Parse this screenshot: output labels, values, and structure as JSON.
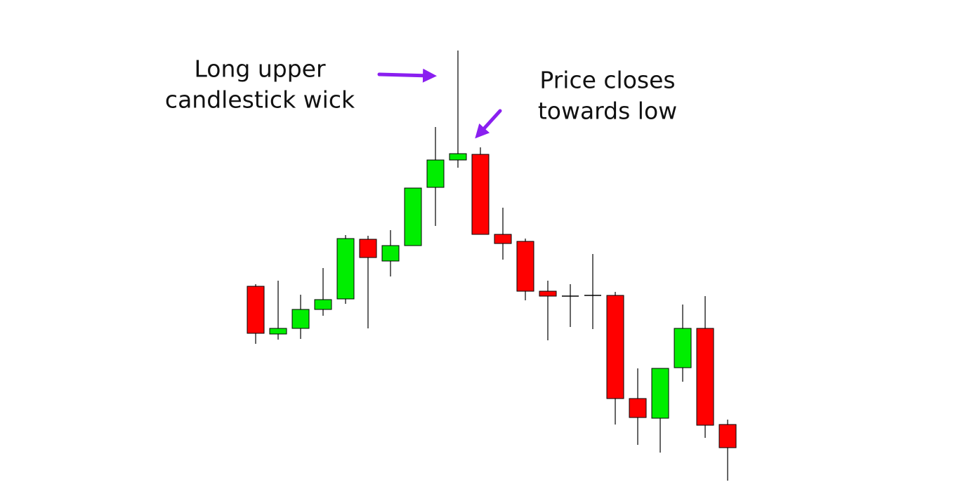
{
  "chart_data": {
    "type": "candlestick",
    "up_color": "#00ee00",
    "down_color": "#ff0000",
    "flat_color": "#000000",
    "ylim": [
      0,
      714
    ],
    "annotations": [
      {
        "lines": [
          "Long upper",
          "candlestick wick"
        ]
      },
      {
        "lines": [
          "Price closes",
          "towards low"
        ]
      }
    ],
    "open": [
      306,
      238,
      246,
      273,
      288,
      373,
      342,
      364,
      447,
      486,
      494,
      380,
      370,
      299,
      292,
      293,
      293,
      146,
      118,
      190,
      246,
      109
    ],
    "high": [
      309,
      314,
      294,
      332,
      379,
      378,
      386,
      446,
      533,
      642,
      504,
      418,
      374,
      314,
      309,
      352,
      298,
      189,
      189,
      280,
      292,
      116
    ],
    "low": [
      224,
      230,
      231,
      264,
      281,
      246,
      320,
      364,
      392,
      475,
      380,
      344,
      286,
      229,
      248,
      245,
      109,
      80,
      69,
      170,
      90,
      29
    ],
    "close": [
      239,
      246,
      273,
      287,
      374,
      347,
      364,
      446,
      486,
      495,
      380,
      367,
      299,
      292,
      292,
      293,
      146,
      119,
      189,
      246,
      108,
      76
    ]
  }
}
